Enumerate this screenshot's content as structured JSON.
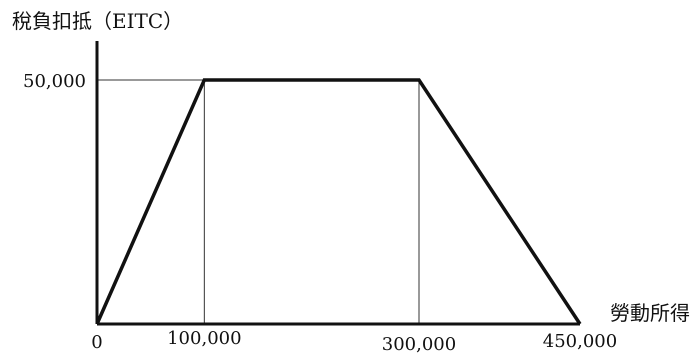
{
  "chart_data": {
    "type": "line",
    "ylabel": "稅負扣抵（EITC）",
    "xlabel": "勞動所得",
    "x": [
      0,
      100000,
      300000,
      450000
    ],
    "series": [
      {
        "values": [
          0,
          50000,
          50000,
          0
        ]
      }
    ],
    "xlim": [
      0,
      450000
    ],
    "ylim": [
      0,
      58000
    ],
    "x_tick_labels": [
      "0",
      "100,000",
      "300,000",
      "450,000"
    ],
    "y_tick_labels": [
      "50,000"
    ],
    "y_tick_value": 50000,
    "guide_lines": true,
    "grid": false,
    "colors": {
      "line": "#111111",
      "axis": "#111111",
      "guide": "#333333"
    }
  }
}
